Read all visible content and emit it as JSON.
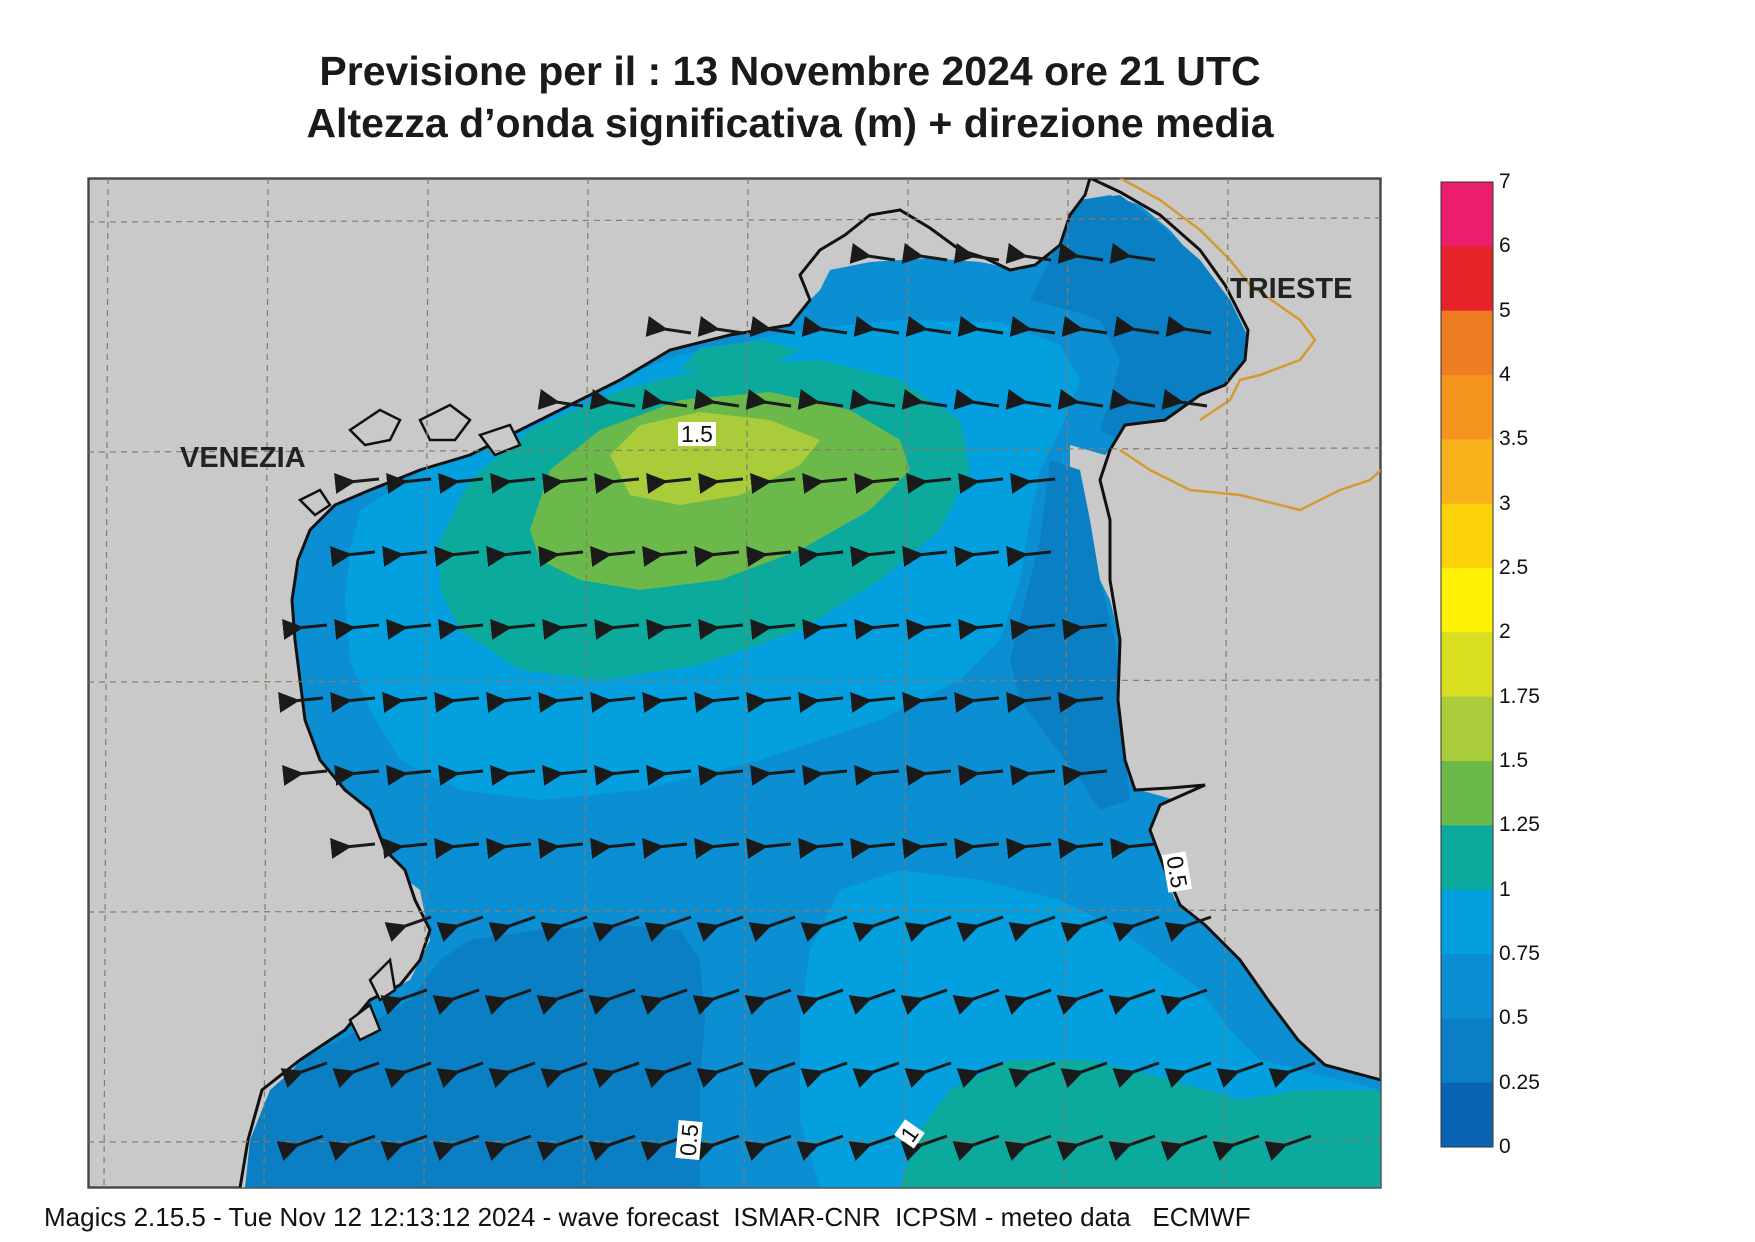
{
  "title": {
    "line1": "Previsione per il  :  13 Novembre  2024   ore 21 UTC",
    "line2": "Altezza d’onda significativa (m) + direzione media"
  },
  "map": {
    "cities": {
      "venezia": "VENEZIA",
      "trieste": "TRIESTE"
    },
    "contour_labels": [
      "1.5",
      "0.5",
      "0.5",
      "1"
    ],
    "wave_direction": "east-to-west",
    "land_color": "#c8c8c8"
  },
  "colorbar": {
    "labels": [
      "7",
      "6",
      "5",
      "4",
      "3.5",
      "3",
      "2.5",
      "2",
      "1.75",
      "1.5",
      "1.25",
      "1",
      "0.75",
      "0.5",
      "0.25",
      "0"
    ],
    "colors": [
      "#ea1e6a",
      "#e5242a",
      "#ee7d21",
      "#f4941f",
      "#f9b11b",
      "#fcd30a",
      "#fdf106",
      "#d9de21",
      "#aacc3a",
      "#6bb94a",
      "#0ca99d",
      "#049fde",
      "#0b8fd2",
      "#0a7fc4",
      "#0864b1"
    ]
  },
  "footer": "Magics 2.15.5 - Tue Nov 12 12:13:12 2024 - wave forecast  ISMAR-CNR  ICPSM - meteo data   ECMWF"
}
